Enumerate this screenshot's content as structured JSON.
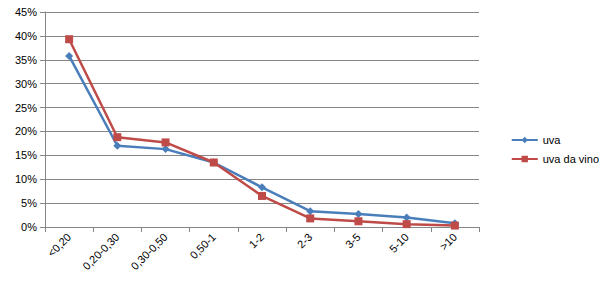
{
  "chart_data": {
    "type": "line",
    "categories": [
      "<0,20",
      "0,20-0,30",
      "0,30-0,50",
      "0,50-1",
      "1-2",
      "2-3",
      "3-5",
      "5-10",
      ">10"
    ],
    "series": [
      {
        "name": "uva",
        "color": "#4a7ebb",
        "marker": "diamond",
        "values": [
          35.8,
          17.0,
          16.3,
          13.5,
          8.3,
          3.3,
          2.7,
          2.0,
          0.8
        ]
      },
      {
        "name": "uva da vino",
        "color": "#be4b48",
        "marker": "square",
        "values": [
          39.3,
          18.8,
          17.7,
          13.5,
          6.5,
          1.8,
          1.2,
          0.6,
          0.3
        ]
      }
    ],
    "ylim": [
      0,
      45
    ],
    "yticks": [
      {
        "value": 0,
        "label": "0%"
      },
      {
        "value": 5,
        "label": "5%"
      },
      {
        "value": 10,
        "label": "10%"
      },
      {
        "value": 15,
        "label": "15%"
      },
      {
        "value": 20,
        "label": "20%"
      },
      {
        "value": 25,
        "label": "25%"
      },
      {
        "value": 30,
        "label": "30%"
      },
      {
        "value": 35,
        "label": "35%"
      },
      {
        "value": 40,
        "label": "40%"
      },
      {
        "value": 45,
        "label": "45%"
      }
    ],
    "grid": true,
    "legend": "right"
  }
}
